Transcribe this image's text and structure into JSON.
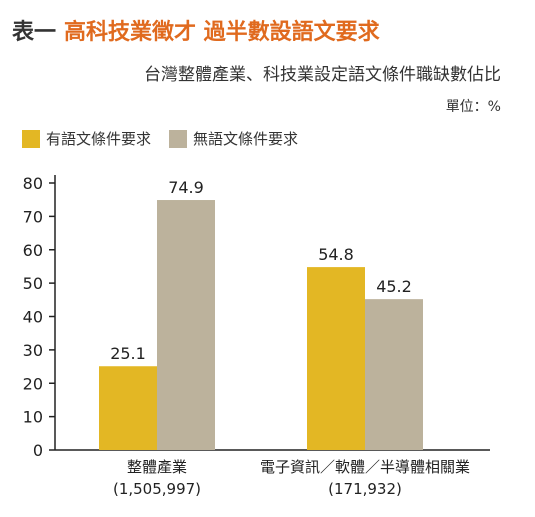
{
  "header": {
    "lead": "表一",
    "headline": "高科技業徵才 過半數設語文要求",
    "subtitle": "台灣整體產業、科技業設定語文條件職缺數佔比",
    "unit": "單位：%"
  },
  "colors": {
    "with_req": "#e3b724",
    "without_req": "#bcb29c",
    "axis": "#222222"
  },
  "chart_data": {
    "type": "bar",
    "categories": [
      "整體產業",
      "電子資訊／軟體／半導體相關業"
    ],
    "category_counts": [
      "(1,505,997)",
      "(171,932)"
    ],
    "series": [
      {
        "name": "有語文條件要求",
        "values": [
          25.1,
          54.8
        ]
      },
      {
        "name": "無語文條件要求",
        "values": [
          74.9,
          45.2
        ]
      }
    ],
    "ylim": [
      0,
      80
    ],
    "yticks": [
      0,
      10,
      20,
      30,
      40,
      50,
      60,
      70,
      80
    ],
    "legend": "top-left",
    "grid": false
  }
}
